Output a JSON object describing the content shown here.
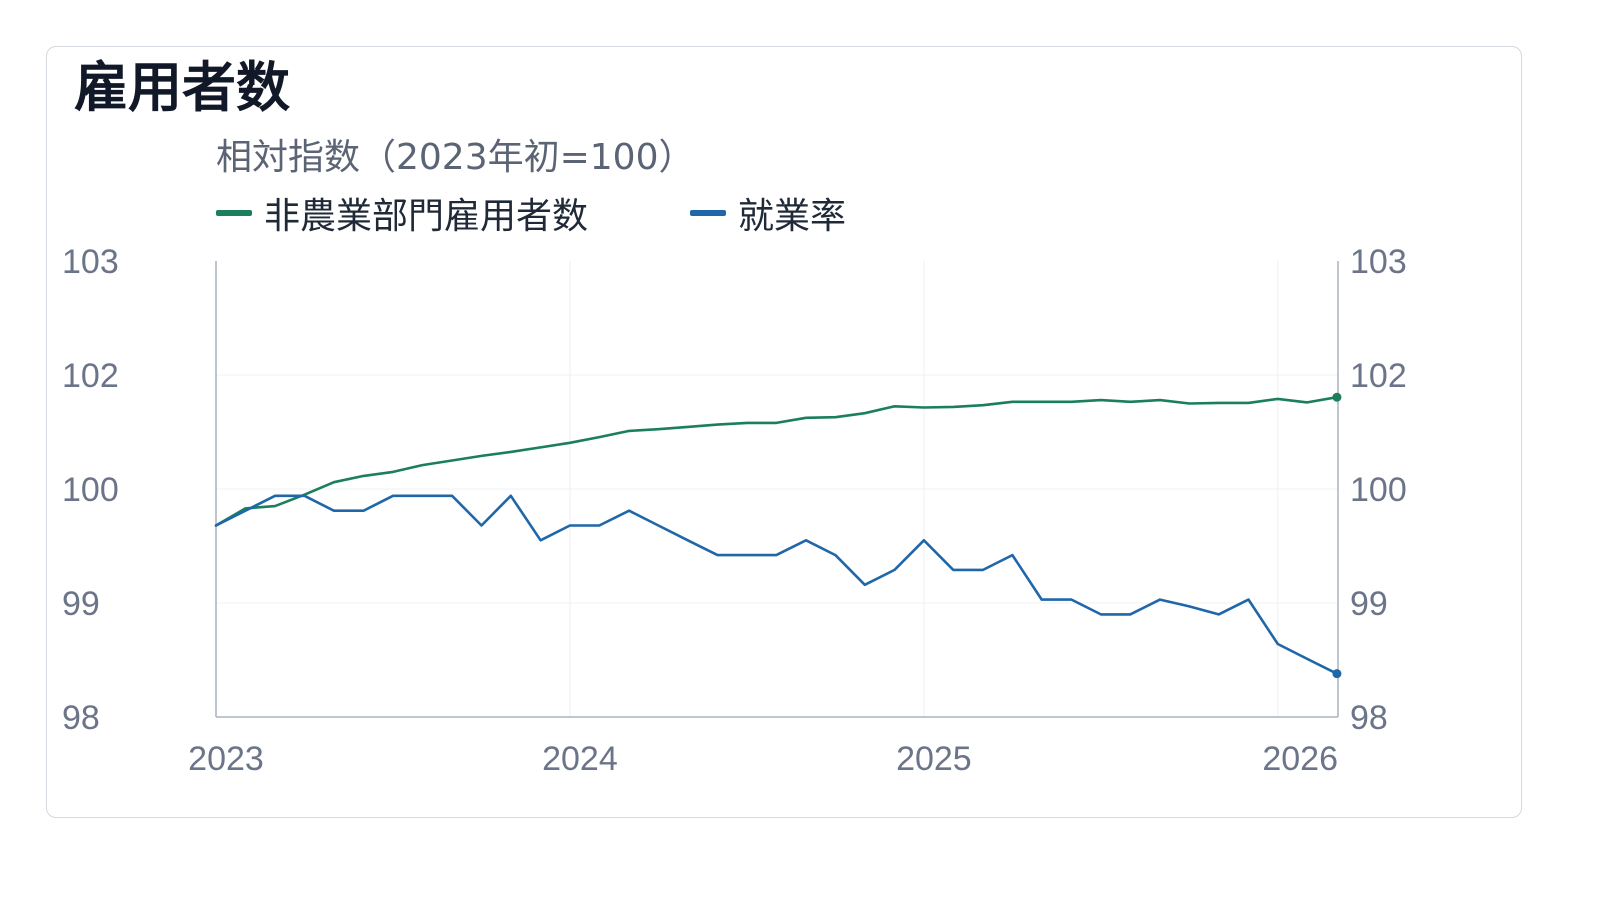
{
  "title": "雇用者数",
  "subtitle": "相対指数（2023年初=100）",
  "colors": {
    "payrolls": "#1a7f5a",
    "employment_rate": "#1f67a8",
    "grid": "#eef0f3",
    "axis": "#aab3c0",
    "tick_text": "#6b7488",
    "card_border": "#d5d9e0"
  },
  "chart_data": {
    "type": "line",
    "title": "雇用者数",
    "subtitle": "相対指数（2023年初=100）",
    "xlabel": "",
    "ylabel": "",
    "legend_position": "top-left",
    "grid": true,
    "x_unit": "year (decimal)",
    "xlim": [
      2023.0,
      2026.17
    ],
    "ylim": [
      98,
      103
    ],
    "y_ticks": [
      98,
      99,
      100,
      102,
      103
    ],
    "y_tick_labels_left": [
      "98",
      "99",
      "100",
      "102",
      "103"
    ],
    "y_tick_labels_right": [
      "98",
      "99",
      "100",
      "102",
      "103"
    ],
    "x_ticks": [
      2023,
      2024,
      2025,
      2026
    ],
    "x_tick_labels": [
      "2023",
      "2024",
      "2025",
      "2026"
    ],
    "x": [
      2023.0,
      2023.083,
      2023.167,
      2023.25,
      2023.333,
      2023.417,
      2023.5,
      2023.583,
      2023.667,
      2023.75,
      2023.833,
      2023.917,
      2024.0,
      2024.083,
      2024.167,
      2024.25,
      2024.333,
      2024.417,
      2024.5,
      2024.583,
      2024.667,
      2024.75,
      2024.833,
      2024.917,
      2025.0,
      2025.083,
      2025.167,
      2025.25,
      2025.333,
      2025.417,
      2025.5,
      2025.583,
      2025.667,
      2025.75,
      2025.833,
      2025.917,
      2026.0,
      2026.083,
      2026.167
    ],
    "series": [
      {
        "name": "非農業部門雇用者数",
        "color": "#1a7f5a",
        "values": [
          99.68,
          99.83,
          99.85,
          99.95,
          100.12,
          100.23,
          100.3,
          100.42,
          100.5,
          100.58,
          100.65,
          100.73,
          100.81,
          100.91,
          101.02,
          101.05,
          101.09,
          101.13,
          101.16,
          101.16,
          101.25,
          101.26,
          101.33,
          101.45,
          101.43,
          101.44,
          101.47,
          101.53,
          101.53,
          101.53,
          101.56,
          101.53,
          101.56,
          101.5,
          101.51,
          101.51,
          101.58,
          101.52,
          101.61
        ]
      },
      {
        "name": "就業率",
        "color": "#1f67a8",
        "values": [
          99.68,
          99.81,
          99.94,
          99.94,
          99.81,
          99.81,
          99.94,
          99.94,
          99.94,
          99.68,
          99.94,
          99.55,
          99.68,
          99.68,
          99.81,
          99.68,
          99.55,
          99.42,
          99.42,
          99.42,
          99.55,
          99.42,
          99.16,
          99.29,
          99.55,
          99.29,
          99.29,
          99.42,
          99.03,
          99.03,
          98.9,
          98.9,
          99.03,
          98.97,
          98.9,
          99.03,
          98.64,
          98.51,
          98.38
        ]
      }
    ]
  }
}
